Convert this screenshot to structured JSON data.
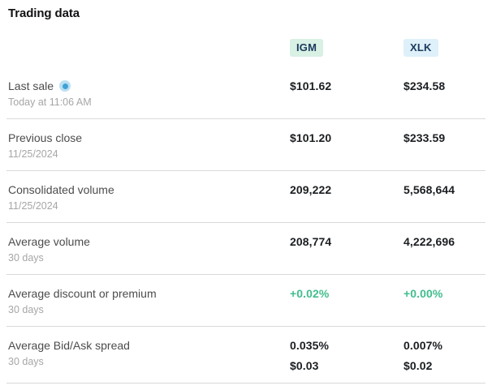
{
  "title": "Trading data",
  "colors": {
    "igm_badge_bg": "#d9f0e4",
    "xlk_badge_bg": "#def0f9",
    "badge_text": "#1b3a5e",
    "positive": "#41bd8d",
    "live_dot": "#3fa2d6",
    "live_dot_halo": "#bce0f2",
    "divider": "#d9d9d9"
  },
  "columns": [
    {
      "ticker": "IGM"
    },
    {
      "ticker": "XLK"
    }
  ],
  "rows": [
    {
      "label": "Last sale",
      "sublabel": "Today at 11:06 AM",
      "igm": "$101.62",
      "xlk": "$234.58",
      "live_indicator": true
    },
    {
      "label": "Previous close",
      "sublabel": "11/25/2024",
      "igm": "$101.20",
      "xlk": "$233.59"
    },
    {
      "label": "Consolidated volume",
      "sublabel": "11/25/2024",
      "igm": "209,222",
      "xlk": "5,568,644"
    },
    {
      "label": "Average volume",
      "sublabel": "30 days",
      "igm": "208,774",
      "xlk": "4,222,696"
    },
    {
      "label": "Average discount or premium",
      "sublabel": "30 days",
      "igm": "+0.02%",
      "xlk": "+0.00%",
      "positive": true
    },
    {
      "label": "Average Bid/Ask spread",
      "sublabel": "30 days",
      "igm": "0.035%",
      "igm_line2": "$0.03",
      "xlk": "0.007%",
      "xlk_line2": "$0.02"
    }
  ]
}
